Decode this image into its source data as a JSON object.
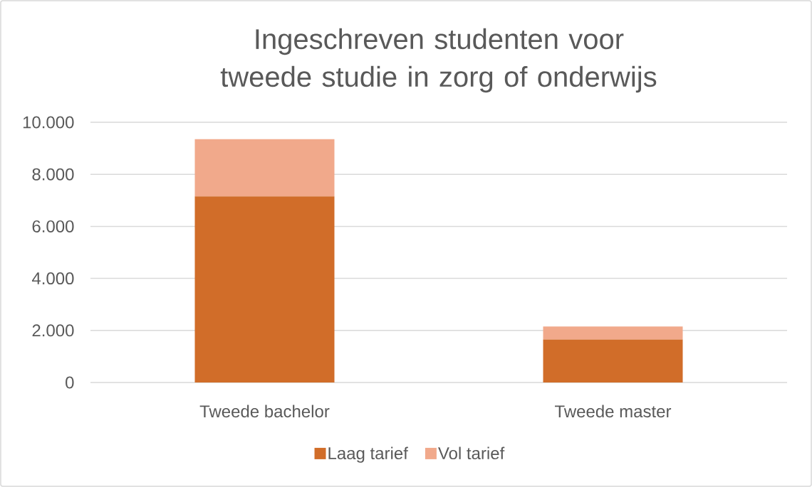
{
  "chart_data": {
    "type": "bar",
    "title": "Ingeschreven studenten voor tweede studie in zorg of onderwijs",
    "categories": [
      "Tweede bachelor",
      "Tweede master"
    ],
    "stacked": true,
    "series": [
      {
        "name": "Laag tarief",
        "color": "#d16d29",
        "values": [
          7150,
          1650
        ]
      },
      {
        "name": "Vol tarief",
        "color": "#f1a98b",
        "values": [
          2200,
          500
        ]
      }
    ],
    "ylim": [
      0,
      10000
    ],
    "yticks": [
      0,
      {
        "value": 2000,
        "label": "2.000"
      },
      {
        "value": 4000,
        "label": "4.000"
      },
      {
        "value": 6000,
        "label": "6.000"
      },
      {
        "value": 8000,
        "label": "8.000"
      },
      {
        "value": 10000,
        "label": "10.000"
      }
    ],
    "grid": "y",
    "legend": "bottom"
  }
}
